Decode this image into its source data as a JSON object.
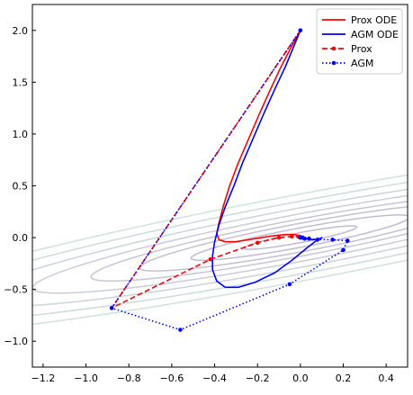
{
  "chart_data": {
    "type": "line",
    "title": "",
    "xlabel": "",
    "ylabel": "",
    "xlim": [
      -1.25,
      0.5
    ],
    "ylim": [
      -1.25,
      2.25
    ],
    "x_ticks": [
      -1.2,
      -1.0,
      -0.8,
      -0.6,
      -0.4,
      -0.2,
      0.0,
      0.2,
      0.4
    ],
    "y_ticks": [
      -1.0,
      -0.5,
      0.0,
      0.5,
      1.0,
      1.5,
      2.0
    ],
    "x_tick_labels": [
      "−1.2",
      "−1.0",
      "−0.8",
      "−0.6",
      "−0.4",
      "−0.2",
      "0.0",
      "0.2",
      "0.4"
    ],
    "y_tick_labels": [
      "−1.0",
      "−0.5",
      "0.0",
      "0.5",
      "1.0",
      "1.5",
      "2.0"
    ],
    "grid": false,
    "tick_direction": "in",
    "legend_position": "top-right",
    "contours": {
      "center": [
        0.0,
        0.0
      ],
      "levels": [
        0.08,
        0.3,
        0.65,
        1.1,
        1.8,
        2.8,
        4.2,
        6.0
      ],
      "colors": [
        "#8e7fb0",
        "#8f82b1",
        "#9489b4",
        "#9a94b8",
        "#9ea2bd",
        "#9fb0bf",
        "#9fbfc1",
        "#a3ccc3"
      ]
    },
    "series": [
      {
        "name": "Prox ODE",
        "color": "#ff0000",
        "style": "solid",
        "marker": "none",
        "x": [
          0.0,
          -0.04,
          -0.09,
          -0.14,
          -0.19,
          -0.24,
          -0.29,
          -0.33,
          -0.36,
          -0.38,
          -0.39,
          -0.38,
          -0.35,
          -0.3,
          -0.24,
          -0.18,
          -0.12,
          -0.07,
          -0.03,
          0.0,
          0.01,
          0.005
        ],
        "y": [
          2.0,
          1.85,
          1.65,
          1.43,
          1.2,
          0.96,
          0.72,
          0.5,
          0.3,
          0.14,
          0.04,
          -0.02,
          -0.04,
          -0.04,
          -0.02,
          0.0,
          0.02,
          0.03,
          0.03,
          0.02,
          0.01,
          0.0
        ]
      },
      {
        "name": "AGM ODE",
        "color": "#0000ff",
        "style": "solid",
        "marker": "none",
        "x": [
          0.0,
          -0.03,
          -0.07,
          -0.12,
          -0.17,
          -0.22,
          -0.27,
          -0.31,
          -0.35,
          -0.38,
          -0.4,
          -0.41,
          -0.41,
          -0.39,
          -0.35,
          -0.29,
          -0.21,
          -0.12,
          -0.04,
          0.03,
          0.08,
          0.1,
          0.09,
          0.06,
          0.03,
          0.01
        ],
        "y": [
          2.0,
          1.85,
          1.65,
          1.43,
          1.2,
          0.96,
          0.72,
          0.5,
          0.3,
          0.12,
          -0.04,
          -0.18,
          -0.31,
          -0.42,
          -0.48,
          -0.48,
          -0.43,
          -0.34,
          -0.22,
          -0.1,
          -0.02,
          0.0,
          -0.01,
          -0.02,
          -0.01,
          0.0
        ]
      },
      {
        "name": "Prox",
        "color": "#ff0000",
        "style": "dashed",
        "marker": "circle",
        "x": [
          0.0,
          -0.88,
          -0.42,
          -0.2,
          -0.1,
          -0.04,
          -0.01,
          0.0
        ],
        "y": [
          2.0,
          -0.68,
          -0.21,
          -0.05,
          0.0,
          0.01,
          0.01,
          0.0
        ]
      },
      {
        "name": "AGM",
        "color": "#0000ff",
        "style": "dotted",
        "marker": "circle",
        "x": [
          0.0,
          -0.88,
          -0.56,
          -0.05,
          0.2,
          0.22,
          0.15,
          0.08,
          0.04,
          0.02,
          0.01,
          0.0
        ],
        "y": [
          2.0,
          -0.68,
          -0.89,
          -0.45,
          -0.12,
          -0.03,
          -0.02,
          -0.02,
          -0.01,
          -0.01,
          0.0,
          0.0
        ]
      }
    ]
  }
}
